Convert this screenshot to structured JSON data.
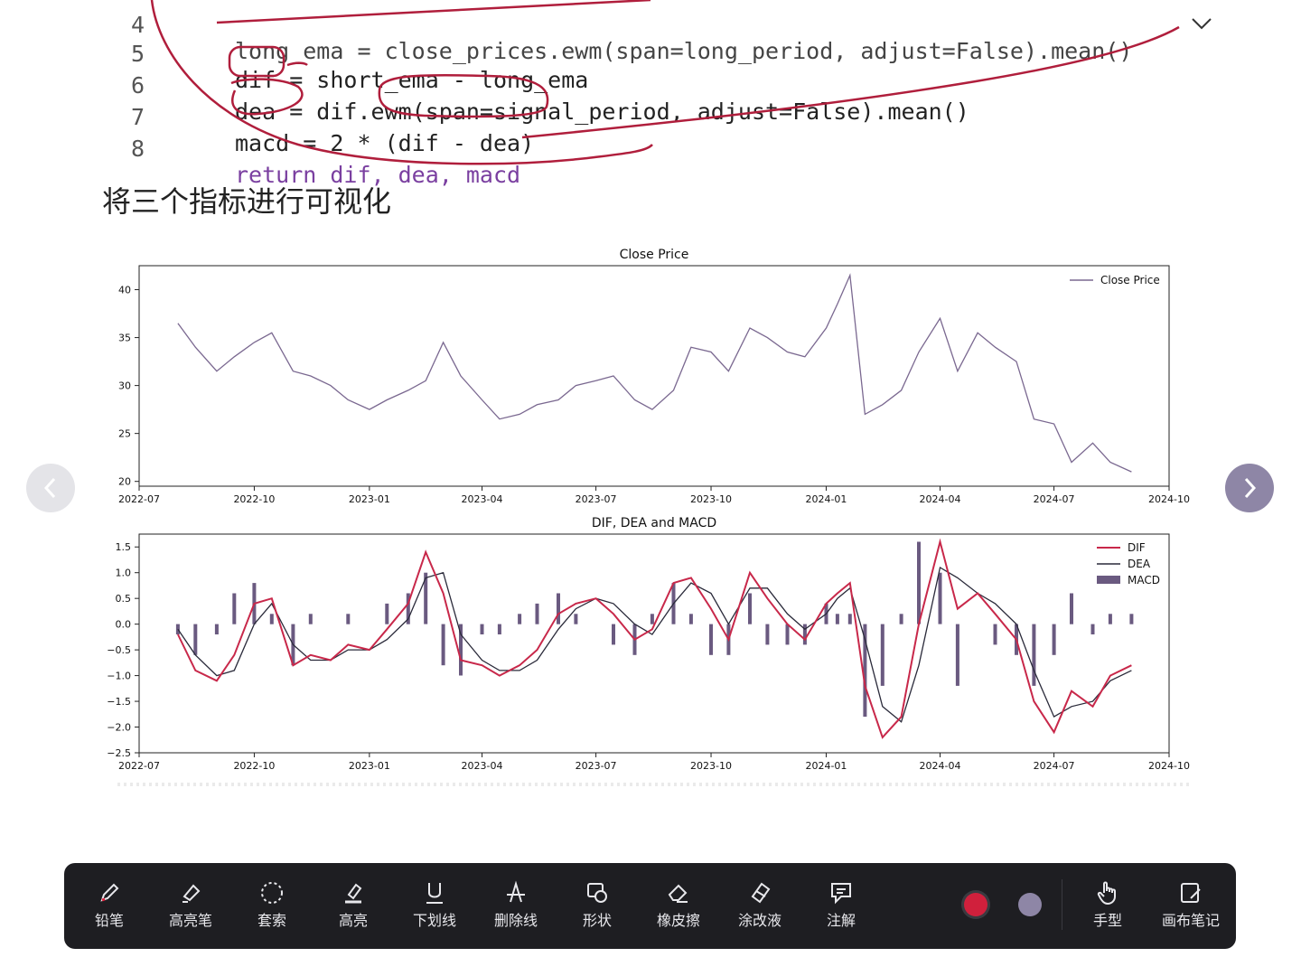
{
  "code": {
    "partial_line": "long_ema = close_prices.ewm(span=long_period, adjust=False).mean()",
    "lines": [
      {
        "num": "5",
        "text": "dif = short_ema - long_ema"
      },
      {
        "num": "6",
        "text": "dea = dif.ewm(span=signal_period, adjust=False).mean()"
      },
      {
        "num": "7",
        "text": "macd = 2 * (dif - dea)"
      },
      {
        "num": "8",
        "text": "return dif, dea, macd"
      }
    ]
  },
  "heading": "将三个指标进行可视化",
  "colors": {
    "price_line": "#7a6890",
    "dif": "#c8284a",
    "dea": "#2a2a3a",
    "macd_bar": "#6a5a80",
    "ink": "#b01e3c",
    "toolbar_bg": "#1e1e22"
  },
  "chart_data": [
    {
      "type": "line",
      "title": "Close Price",
      "xlabel": "",
      "ylabel": "",
      "x_ticks": [
        "2022-07",
        "2022-10",
        "2023-01",
        "2023-04",
        "2023-07",
        "2023-10",
        "2024-01",
        "2024-04",
        "2024-07",
        "2024-10"
      ],
      "y_ticks": [
        "20",
        "25",
        "30",
        "35",
        "40"
      ],
      "ylim": [
        19.5,
        42.5
      ],
      "xlim": [
        "2022-07-01",
        "2024-10-01"
      ],
      "legend": "top-right",
      "grid": false,
      "series": [
        {
          "name": "Close Price",
          "x": [
            "2022-08-01",
            "2022-08-15",
            "2022-09-01",
            "2022-09-15",
            "2022-10-01",
            "2022-10-15",
            "2022-11-01",
            "2022-11-15",
            "2022-12-01",
            "2022-12-15",
            "2023-01-01",
            "2023-01-15",
            "2023-02-01",
            "2023-02-15",
            "2023-03-01",
            "2023-03-15",
            "2023-04-01",
            "2023-04-15",
            "2023-05-01",
            "2023-05-15",
            "2023-06-01",
            "2023-06-15",
            "2023-07-01",
            "2023-07-15",
            "2023-08-01",
            "2023-08-15",
            "2023-09-01",
            "2023-09-15",
            "2023-10-01",
            "2023-10-15",
            "2023-11-01",
            "2023-11-15",
            "2023-12-01",
            "2023-12-15",
            "2024-01-01",
            "2024-01-10",
            "2024-01-20",
            "2024-02-01",
            "2024-02-15",
            "2024-03-01",
            "2024-03-15",
            "2024-04-01",
            "2024-04-15",
            "2024-05-01",
            "2024-05-15",
            "2024-06-01",
            "2024-06-15",
            "2024-07-01",
            "2024-07-15",
            "2024-08-01",
            "2024-08-15",
            "2024-09-01"
          ],
          "y": [
            36.5,
            34.0,
            31.5,
            33.0,
            34.5,
            35.5,
            31.5,
            31.0,
            30.0,
            28.5,
            27.5,
            28.5,
            29.5,
            30.5,
            34.5,
            31.0,
            28.5,
            26.5,
            27.0,
            28.0,
            28.5,
            30.0,
            30.5,
            31.0,
            28.5,
            27.5,
            29.5,
            34.0,
            33.5,
            31.5,
            36.0,
            35.0,
            33.5,
            33.0,
            36.0,
            38.5,
            41.5,
            27.0,
            28.0,
            29.5,
            33.5,
            37.0,
            31.5,
            35.5,
            34.0,
            32.5,
            26.5,
            26.0,
            22.0,
            24.0,
            22.0,
            21.0
          ]
        }
      ]
    },
    {
      "type": "bar+line",
      "title": "DIF, DEA and MACD",
      "xlabel": "",
      "ylabel": "",
      "x_ticks": [
        "2022-07",
        "2022-10",
        "2023-01",
        "2023-04",
        "2023-07",
        "2023-10",
        "2024-01",
        "2024-04",
        "2024-07",
        "2024-10"
      ],
      "y_ticks": [
        "1.5",
        "1.0",
        "0.5",
        "0.0",
        "−0.5",
        "−1.0",
        "−1.5",
        "−2.0",
        "−2.5"
      ],
      "ylim": [
        -2.5,
        1.75
      ],
      "xlim": [
        "2022-07-01",
        "2024-10-01"
      ],
      "legend": "top-right",
      "grid": false,
      "x": [
        "2022-08-01",
        "2022-08-15",
        "2022-09-01",
        "2022-09-15",
        "2022-10-01",
        "2022-10-15",
        "2022-11-01",
        "2022-11-15",
        "2022-12-01",
        "2022-12-15",
        "2023-01-01",
        "2023-01-15",
        "2023-02-01",
        "2023-02-15",
        "2023-03-01",
        "2023-03-15",
        "2023-04-01",
        "2023-04-15",
        "2023-05-01",
        "2023-05-15",
        "2023-06-01",
        "2023-06-15",
        "2023-07-01",
        "2023-07-15",
        "2023-08-01",
        "2023-08-15",
        "2023-09-01",
        "2023-09-15",
        "2023-10-01",
        "2023-10-15",
        "2023-11-01",
        "2023-11-15",
        "2023-12-01",
        "2023-12-15",
        "2024-01-01",
        "2024-01-10",
        "2024-01-20",
        "2024-02-01",
        "2024-02-15",
        "2024-03-01",
        "2024-03-15",
        "2024-04-01",
        "2024-04-15",
        "2024-05-01",
        "2024-05-15",
        "2024-06-01",
        "2024-06-15",
        "2024-07-01",
        "2024-07-15",
        "2024-08-01",
        "2024-08-15",
        "2024-09-01"
      ],
      "series": [
        {
          "name": "DIF",
          "values": [
            -0.2,
            -0.9,
            -1.1,
            -0.6,
            0.4,
            0.5,
            -0.8,
            -0.6,
            -0.7,
            -0.4,
            -0.5,
            -0.1,
            0.4,
            1.4,
            0.6,
            -0.7,
            -0.8,
            -1.0,
            -0.8,
            -0.5,
            0.2,
            0.4,
            0.5,
            0.2,
            -0.3,
            -0.1,
            0.8,
            0.9,
            0.3,
            -0.3,
            1.0,
            0.5,
            0.0,
            -0.3,
            0.4,
            0.6,
            0.8,
            -1.2,
            -2.2,
            -1.8,
            0.0,
            1.6,
            0.3,
            0.6,
            0.2,
            -0.3,
            -1.5,
            -2.1,
            -1.3,
            -1.6,
            -1.0,
            -0.8
          ]
        },
        {
          "name": "DEA",
          "values": [
            -0.1,
            -0.6,
            -1.0,
            -0.9,
            0.0,
            0.4,
            -0.4,
            -0.7,
            -0.7,
            -0.5,
            -0.5,
            -0.3,
            0.1,
            0.9,
            1.0,
            -0.2,
            -0.7,
            -0.9,
            -0.9,
            -0.7,
            -0.1,
            0.3,
            0.5,
            0.4,
            0.0,
            -0.2,
            0.4,
            0.8,
            0.6,
            0.0,
            0.7,
            0.7,
            0.2,
            -0.1,
            0.2,
            0.5,
            0.7,
            -0.3,
            -1.6,
            -1.9,
            -0.8,
            1.1,
            0.9,
            0.6,
            0.4,
            0.0,
            -0.9,
            -1.8,
            -1.6,
            -1.5,
            -1.1,
            -0.9
          ]
        },
        {
          "name": "MACD",
          "values": [
            -0.2,
            -0.6,
            -0.2,
            0.6,
            0.8,
            0.2,
            -0.8,
            0.2,
            0.0,
            0.2,
            0.0,
            0.4,
            0.6,
            1.0,
            -0.8,
            -1.0,
            -0.2,
            -0.2,
            0.2,
            0.4,
            0.6,
            0.2,
            0.0,
            -0.4,
            -0.6,
            0.2,
            0.8,
            0.2,
            -0.6,
            -0.6,
            0.6,
            -0.4,
            -0.4,
            -0.4,
            0.4,
            0.2,
            0.2,
            -1.8,
            -1.2,
            0.2,
            1.6,
            1.0,
            -1.2,
            0.0,
            -0.4,
            -0.6,
            -1.2,
            -0.6,
            0.6,
            -0.2,
            0.2,
            0.2
          ]
        }
      ]
    }
  ],
  "toolbar": {
    "tools": [
      {
        "icon": "pencil-icon",
        "label": "铅笔"
      },
      {
        "icon": "highlighter-pen-icon",
        "label": "高亮笔"
      },
      {
        "icon": "lasso-icon",
        "label": "套索"
      },
      {
        "icon": "highlight-icon",
        "label": "高亮"
      },
      {
        "icon": "underline-icon",
        "label": "下划线"
      },
      {
        "icon": "strikethrough-icon",
        "label": "删除线"
      },
      {
        "icon": "shape-icon",
        "label": "形状"
      },
      {
        "icon": "eraser-icon",
        "label": "橡皮擦"
      },
      {
        "icon": "correction-fluid-icon",
        "label": "涂改液"
      },
      {
        "icon": "annotation-icon",
        "label": "注解"
      }
    ],
    "colors": [
      "#d0203c",
      "#8e86a6"
    ],
    "right_tools": [
      {
        "icon": "hand-icon",
        "label": "手型"
      },
      {
        "icon": "canvas-note-icon",
        "label": "画布笔记"
      }
    ]
  }
}
